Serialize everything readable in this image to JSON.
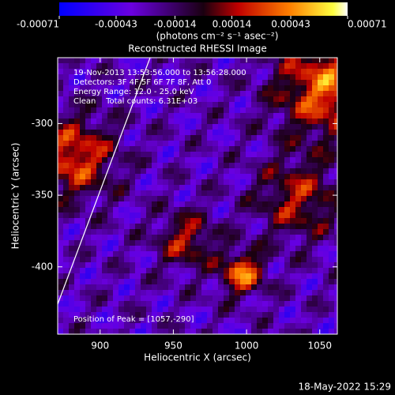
{
  "chart_data": {
    "type": "image",
    "title": "Reconstructed RHESSI Image",
    "x_label": "Heliocentric X (arcsec)",
    "y_label": "Heliocentric Y (arcsec)",
    "xlim": [
      871,
      1062
    ],
    "xticks": [
      900,
      950,
      1000,
      1050
    ],
    "ylim": [
      -447,
      -254
    ],
    "yticks": [
      -300,
      -350,
      -400
    ],
    "colorbar": {
      "lim": [
        -0.00071,
        0.00071
      ],
      "ticks": [
        -0.00071,
        -0.00043,
        -0.00014,
        0.00014,
        0.00043,
        0.00071
      ],
      "label": "(photons cm⁻² s⁻¹ asec⁻²)"
    },
    "annotations": [
      "19-Nov-2013 13:53:56.000 to 13:56:28.000",
      "Detectors: 3F 4F 5F 6F 7F 8F, Att 0",
      "Energy Range: 12.0 - 25.0 keV",
      "Clean    Total counts: 6.31E+03"
    ],
    "peak_label": "Position of Peak = [1057,-290]",
    "timestamp": "18-May-2022 15:29"
  }
}
